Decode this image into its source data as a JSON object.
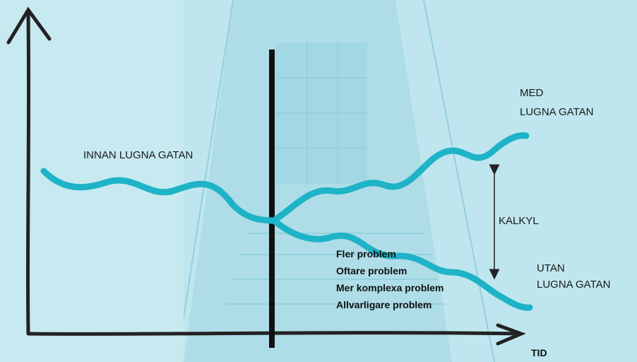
{
  "labels": {
    "before": "INNAN LUGNA GATAN",
    "with": [
      "MED",
      "LUGNA GATAN"
    ],
    "calc": "KALKYL",
    "without": [
      "UTAN",
      "LUGNA GATAN"
    ],
    "problems": [
      "Fler problem",
      "Oftare problem",
      "Mer komplexa problem",
      "Allvarligare problem"
    ],
    "x_axis": "TID"
  }
}
